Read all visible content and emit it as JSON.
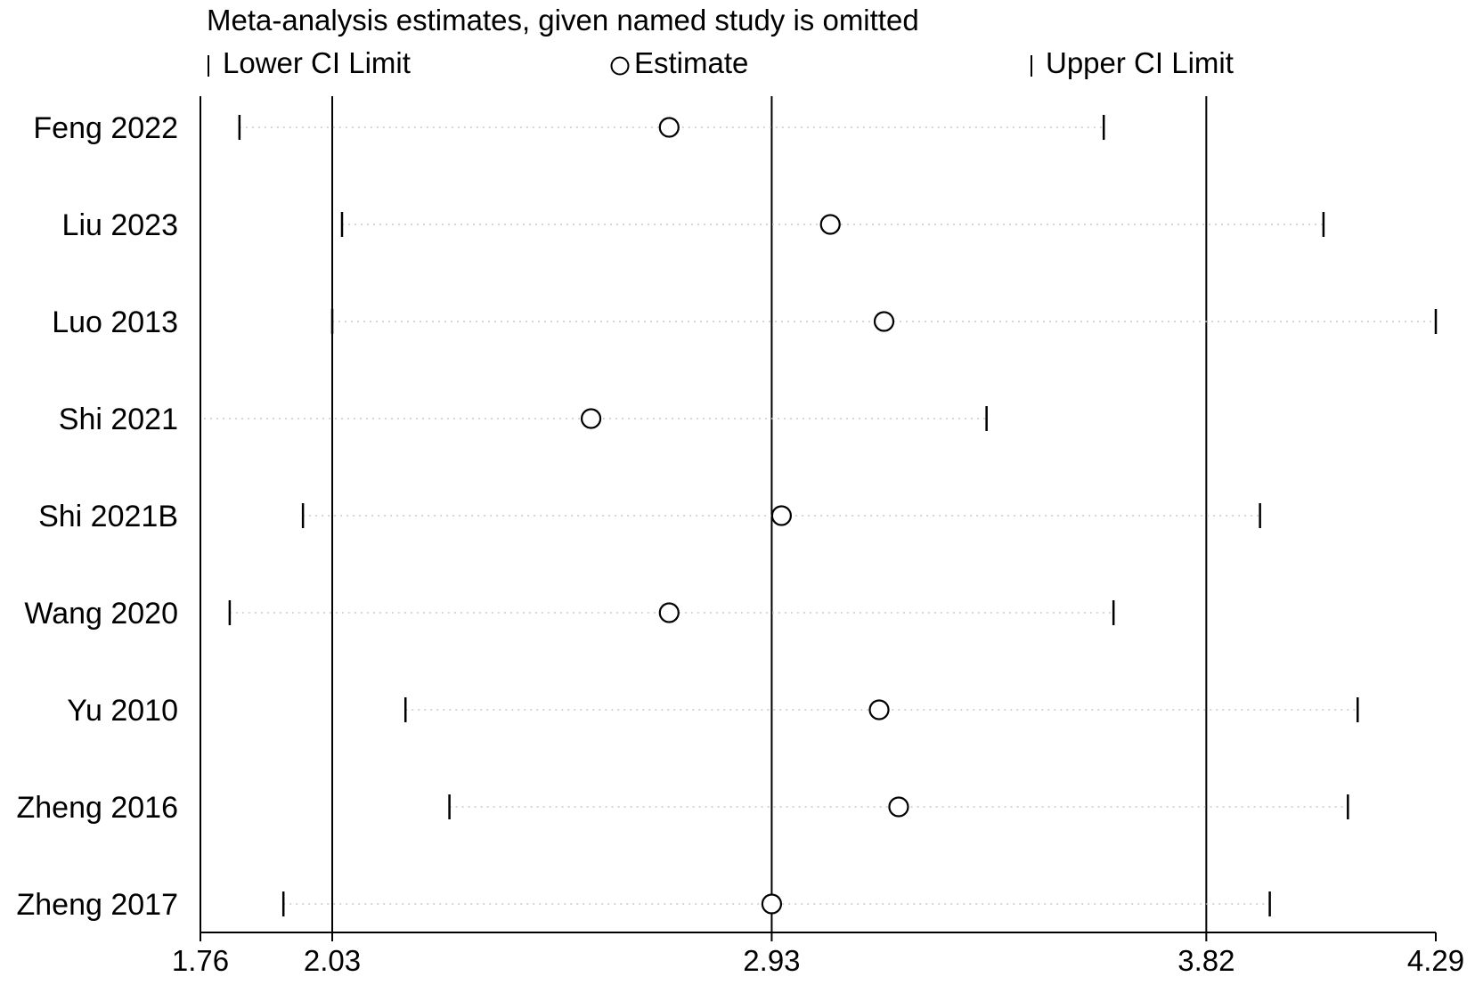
{
  "chart_data": {
    "type": "scatter",
    "title": "Meta-analysis estimates, given named study is omitted",
    "legend": {
      "lower": "Lower CI Limit",
      "estimate": "Estimate",
      "upper": "Upper CI Limit",
      "placement": "top"
    },
    "xlim": [
      1.76,
      4.29
    ],
    "xticks": [
      1.76,
      2.03,
      2.93,
      3.82,
      4.29
    ],
    "xtick_labels": [
      "1.76",
      "2.03",
      "2.93",
      "3.82",
      "4.29"
    ],
    "reference_lines": [
      2.03,
      2.93,
      3.82
    ],
    "studies": [
      {
        "name": "Feng 2022",
        "lower": 1.84,
        "estimate": 2.72,
        "upper": 3.61
      },
      {
        "name": "Liu 2023",
        "lower": 2.05,
        "estimate": 3.05,
        "upper": 4.06
      },
      {
        "name": "Luo 2013",
        "lower": 2.03,
        "estimate": 3.16,
        "upper": 4.29
      },
      {
        "name": "Shi 2021",
        "lower": null,
        "estimate": 2.56,
        "upper": 3.37
      },
      {
        "name": "Shi 2021B",
        "lower": 1.97,
        "estimate": 2.95,
        "upper": 3.93
      },
      {
        "name": "Wang 2020",
        "lower": 1.82,
        "estimate": 2.72,
        "upper": 3.63
      },
      {
        "name": "Yu 2010",
        "lower": 2.18,
        "estimate": 3.15,
        "upper": 4.13
      },
      {
        "name": "Zheng 2016",
        "lower": 2.27,
        "estimate": 3.19,
        "upper": 4.11
      },
      {
        "name": "Zheng 2017",
        "lower": 1.93,
        "estimate": 2.93,
        "upper": 3.95
      }
    ],
    "grid": false
  }
}
